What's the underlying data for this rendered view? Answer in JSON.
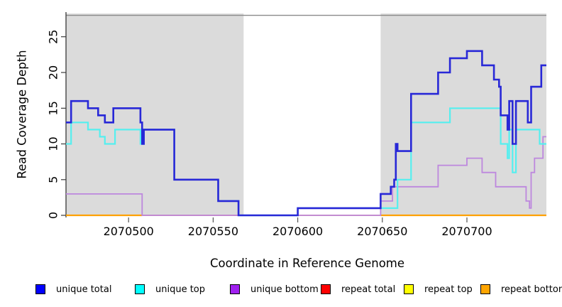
{
  "chart_data": {
    "type": "line",
    "subtype": "step-coverage",
    "title": "",
    "xlabel": "Coordinate in Reference Genome",
    "ylabel": "Read Coverage Depth",
    "xlim": [
      2070463,
      2070747
    ],
    "ylim": [
      0,
      28.2
    ],
    "x_ticks": [
      2070500,
      2070550,
      2070600,
      2070650,
      2070700
    ],
    "y_ticks": [
      0,
      5,
      10,
      15,
      20,
      25
    ],
    "grid": false,
    "top_border_value": 28,
    "background_color": "#ffffff",
    "shaded_regions": [
      {
        "name": "left-gray-region",
        "from": 2070463,
        "to": 2070568,
        "color": "#dbdbdb"
      },
      {
        "name": "right-gray-region",
        "from": 2070649,
        "to": 2070747,
        "color": "#dbdbdb"
      }
    ],
    "series": [
      {
        "name": "repeat top",
        "color": "#FFFF00",
        "width": 1.5,
        "steps": [
          [
            2070463,
            0
          ],
          [
            2070747,
            0
          ]
        ]
      },
      {
        "name": "repeat total",
        "color": "#DC5A64",
        "width": 1.6,
        "steps": [
          [
            2070463,
            0
          ],
          [
            2070747,
            0
          ]
        ]
      },
      {
        "name": "repeat bottom",
        "color": "#FFA100",
        "width": 2.2,
        "draw_ranges": [
          [
            2070463,
            2070508
          ],
          [
            2070649,
            2070747
          ]
        ],
        "steps": [
          [
            2070463,
            0
          ],
          [
            2070747,
            0
          ]
        ]
      },
      {
        "name": "unique bottom",
        "color": "#BD87DE",
        "width": 1.8,
        "steps": [
          [
            2070463,
            3
          ],
          [
            2070508,
            0
          ],
          [
            2070649,
            2
          ],
          [
            2070656,
            4
          ],
          [
            2070683,
            7
          ],
          [
            2070700,
            8
          ],
          [
            2070709,
            6
          ],
          [
            2070717,
            4
          ],
          [
            2070735,
            2
          ],
          [
            2070737,
            1
          ],
          [
            2070738,
            6
          ],
          [
            2070740,
            8
          ],
          [
            2070745,
            11
          ],
          [
            2070747,
            11
          ]
        ]
      },
      {
        "name": "unique top",
        "color": "#55EFEF",
        "width": 2.2,
        "steps": [
          [
            2070463,
            10
          ],
          [
            2070466,
            13
          ],
          [
            2070476,
            12
          ],
          [
            2070483,
            11
          ],
          [
            2070486,
            10
          ],
          [
            2070492,
            12
          ],
          [
            2070507,
            10
          ],
          [
            2070509,
            12
          ],
          [
            2070527,
            5
          ],
          [
            2070553,
            2
          ],
          [
            2070565,
            0
          ],
          [
            2070600,
            1
          ],
          [
            2070659,
            5
          ],
          [
            2070667,
            13
          ],
          [
            2070690,
            15
          ],
          [
            2070720,
            10
          ],
          [
            2070724,
            8
          ],
          [
            2070725,
            12
          ],
          [
            2070727,
            6
          ],
          [
            2070729,
            12
          ],
          [
            2070743,
            10
          ],
          [
            2070747,
            10
          ]
        ]
      },
      {
        "name": "unique total",
        "color": "#2828D7",
        "width": 2.6,
        "steps": [
          [
            2070463,
            13
          ],
          [
            2070466,
            16
          ],
          [
            2070476,
            15
          ],
          [
            2070482,
            14
          ],
          [
            2070486,
            13
          ],
          [
            2070491,
            15
          ],
          [
            2070507,
            13
          ],
          [
            2070508,
            10
          ],
          [
            2070509,
            12
          ],
          [
            2070527,
            5
          ],
          [
            2070553,
            2
          ],
          [
            2070565,
            0
          ],
          [
            2070600,
            1
          ],
          [
            2070649,
            3
          ],
          [
            2070655,
            4
          ],
          [
            2070657,
            5
          ],
          [
            2070658,
            10
          ],
          [
            2070659,
            9
          ],
          [
            2070667,
            17
          ],
          [
            2070683,
            20
          ],
          [
            2070690,
            22
          ],
          [
            2070700,
            23
          ],
          [
            2070709,
            21
          ],
          [
            2070716,
            19
          ],
          [
            2070719,
            18
          ],
          [
            2070720,
            14
          ],
          [
            2070724,
            12
          ],
          [
            2070725,
            16
          ],
          [
            2070727,
            10
          ],
          [
            2070729,
            16
          ],
          [
            2070736,
            13
          ],
          [
            2070738,
            18
          ],
          [
            2070744,
            21
          ],
          [
            2070747,
            21
          ]
        ]
      }
    ],
    "legend_position": "bottom"
  },
  "legend": {
    "items": [
      {
        "label": "unique total",
        "color": "#0000FF"
      },
      {
        "label": "unique top",
        "color": "#00FFFF"
      },
      {
        "label": "unique bottom",
        "color": "#A020F0"
      },
      {
        "label": "repeat total",
        "color": "#FF0000"
      },
      {
        "label": "repeat top",
        "color": "#FFFF00"
      },
      {
        "label": "repeat bottom",
        "color": "#FFA500"
      }
    ]
  }
}
